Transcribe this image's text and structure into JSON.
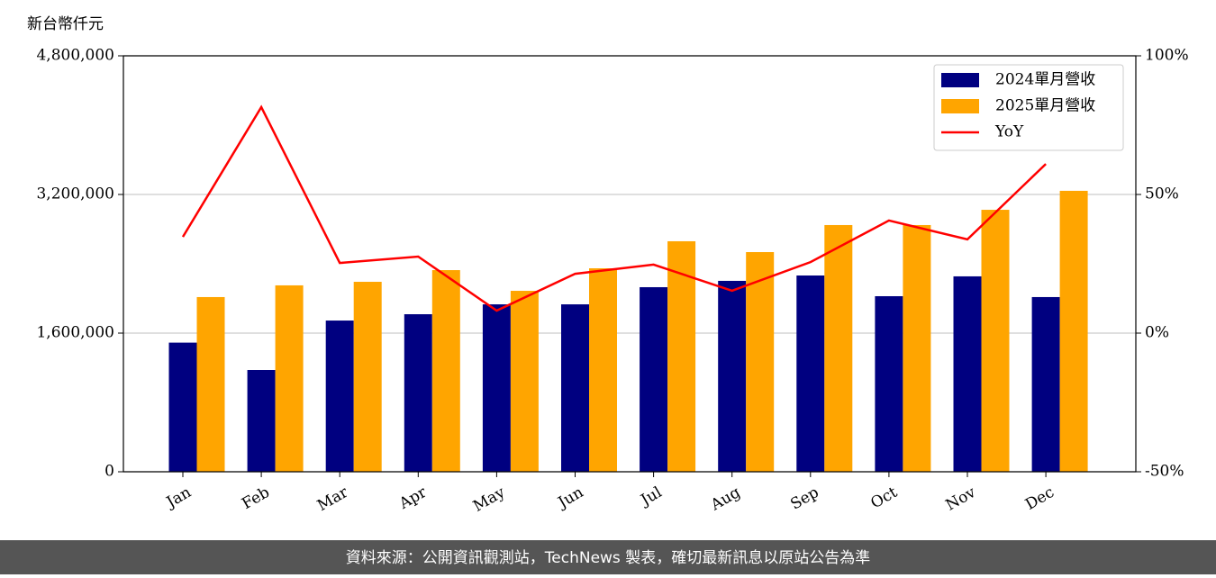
{
  "chart_data": {
    "type": "bar",
    "y_label": "新台幣仟元",
    "footer": "資料來源：公開資訊觀測站，TechNews 製表，確切最新訊息以原站公告為準",
    "categories": [
      "Jan",
      "Feb",
      "Mar",
      "Apr",
      "May",
      "Jun",
      "Jul",
      "Aug",
      "Sep",
      "Oct",
      "Nov",
      "Dec"
    ],
    "series": [
      {
        "name": "2024單月營收",
        "type": "bar",
        "color": "#000080",
        "values": [
          1490000,
          1174000,
          1745000,
          1818000,
          1932000,
          1932000,
          2130000,
          2203000,
          2265000,
          2026000,
          2255000,
          2016000
        ]
      },
      {
        "name": "2025單月營收",
        "type": "bar",
        "color": "#ffa500",
        "values": [
          2016000,
          2151000,
          2192000,
          2327000,
          2088000,
          2348000,
          2660000,
          2535000,
          2847000,
          2847000,
          3023000,
          3242000
        ]
      },
      {
        "name": "YoY",
        "type": "line",
        "axis": "y2",
        "color": "#ff0000",
        "values": [
          34.7,
          81.5,
          25.3,
          27.6,
          8.1,
          21.4,
          24.7,
          15.3,
          25.6,
          40.6,
          33.8,
          61.0
        ]
      }
    ],
    "ylim": [
      0,
      4800000
    ],
    "yticks": [
      0,
      {
        "value": 1600000,
        "label": "1,600,000"
      },
      {
        "value": 3200000,
        "label": "3,200,000"
      },
      {
        "value": 4800000,
        "label": "4,800,000"
      }
    ],
    "y2lim": [
      -50,
      100
    ],
    "y2ticks": [
      {
        "value": -50,
        "label": "-50%"
      },
      {
        "value": 0,
        "label": "0%"
      },
      {
        "value": 50,
        "label": "50%"
      },
      {
        "value": 100,
        "label": "100%"
      }
    ],
    "grid": true,
    "legend": "upper right"
  }
}
